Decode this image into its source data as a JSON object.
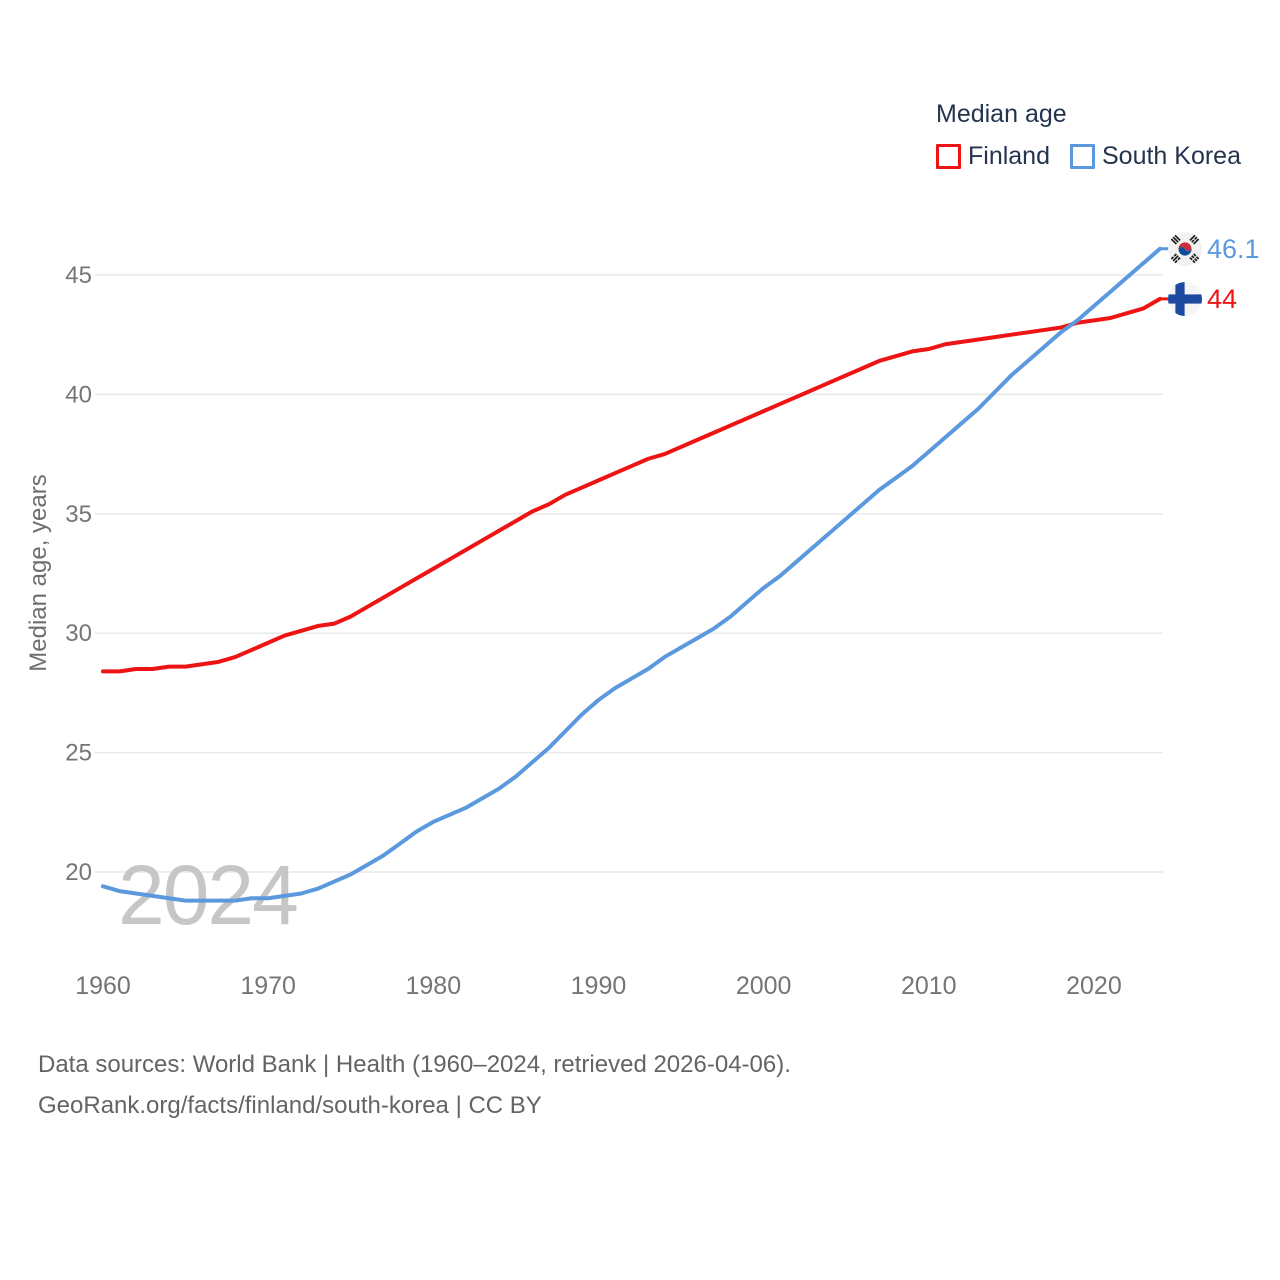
{
  "legend": {
    "title": "Median age",
    "items": [
      {
        "label": "Finland",
        "color": "#ee1414"
      },
      {
        "label": "South Korea",
        "color": "#5b99de"
      }
    ]
  },
  "watermark": "2024",
  "footer": {
    "line1": "Data sources: World Bank | Health (1960–2024, retrieved 2026-04-06).",
    "line2": "GeoRank.org/facts/finland/south-korea | CC BY"
  },
  "chart_data": {
    "type": "line",
    "title": "Median age",
    "xlabel": "",
    "ylabel": "Median age, years",
    "xlim": [
      1960,
      2024
    ],
    "ylim": [
      18,
      47
    ],
    "grid": "horizontal",
    "legend_position": "top-right",
    "xticks": [
      1960,
      1970,
      1980,
      1990,
      2000,
      2010,
      2020
    ],
    "yticks": [
      20,
      25,
      30,
      35,
      40,
      45
    ],
    "x": [
      1960,
      1961,
      1962,
      1963,
      1964,
      1965,
      1966,
      1967,
      1968,
      1969,
      1970,
      1971,
      1972,
      1973,
      1974,
      1975,
      1976,
      1977,
      1978,
      1979,
      1980,
      1981,
      1982,
      1983,
      1984,
      1985,
      1986,
      1987,
      1988,
      1989,
      1990,
      1991,
      1992,
      1993,
      1994,
      1995,
      1996,
      1997,
      1998,
      1999,
      2000,
      2001,
      2002,
      2003,
      2004,
      2005,
      2006,
      2007,
      2008,
      2009,
      2010,
      2011,
      2012,
      2013,
      2014,
      2015,
      2016,
      2017,
      2018,
      2019,
      2020,
      2021,
      2022,
      2023,
      2024
    ],
    "series": [
      {
        "name": "Finland",
        "color": "#ee1414",
        "end_label": "44",
        "values": [
          28.4,
          28.4,
          28.5,
          28.5,
          28.6,
          28.6,
          28.7,
          28.8,
          29.0,
          29.3,
          29.6,
          29.9,
          30.1,
          30.3,
          30.4,
          30.7,
          31.1,
          31.5,
          31.9,
          32.3,
          32.7,
          33.1,
          33.5,
          33.9,
          34.3,
          34.7,
          35.1,
          35.4,
          35.8,
          36.1,
          36.4,
          36.7,
          37.0,
          37.3,
          37.5,
          37.8,
          38.1,
          38.4,
          38.7,
          39.0,
          39.3,
          39.6,
          39.9,
          40.2,
          40.5,
          40.8,
          41.1,
          41.4,
          41.6,
          41.8,
          41.9,
          42.1,
          42.2,
          42.3,
          42.4,
          42.5,
          42.6,
          42.7,
          42.8,
          43.0,
          43.1,
          43.2,
          43.4,
          43.6,
          44.0
        ]
      },
      {
        "name": "South Korea",
        "color": "#5b99de",
        "end_label": "46.1",
        "values": [
          19.4,
          19.2,
          19.1,
          19.0,
          18.9,
          18.8,
          18.8,
          18.8,
          18.8,
          18.9,
          18.9,
          19.0,
          19.1,
          19.3,
          19.6,
          19.9,
          20.3,
          20.7,
          21.2,
          21.7,
          22.1,
          22.4,
          22.7,
          23.1,
          23.5,
          24.0,
          24.6,
          25.2,
          25.9,
          26.6,
          27.2,
          27.7,
          28.1,
          28.5,
          29.0,
          29.4,
          29.8,
          30.2,
          30.7,
          31.3,
          31.9,
          32.4,
          33.0,
          33.6,
          34.2,
          34.8,
          35.4,
          36.0,
          36.5,
          37.0,
          37.6,
          38.2,
          38.8,
          39.4,
          40.1,
          40.8,
          41.4,
          42.0,
          42.6,
          43.1,
          43.7,
          44.3,
          44.9,
          45.5,
          46.1
        ]
      }
    ]
  }
}
